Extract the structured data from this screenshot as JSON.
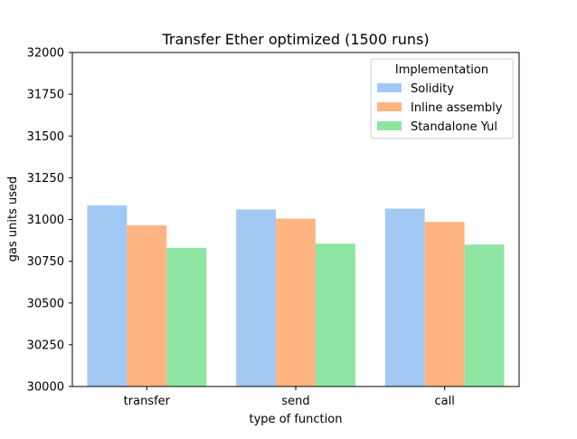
{
  "chart_data": {
    "type": "bar",
    "title": "Transfer Ether optimized (1500 runs)",
    "xlabel": "type of function",
    "ylabel": "gas units used",
    "categories": [
      "transfer",
      "send",
      "call"
    ],
    "ylim": [
      30000,
      32000
    ],
    "yticks": [
      30000,
      30250,
      30500,
      30750,
      31000,
      31250,
      31500,
      31750,
      32000
    ],
    "grid": false,
    "legend": {
      "title": "Implementation",
      "placement": "top-right"
    },
    "series": [
      {
        "name": "Solidity",
        "color": "#a1c9f4",
        "values": [
          31085,
          31060,
          31065
        ]
      },
      {
        "name": "Inline assembly",
        "color": "#ffb482",
        "values": [
          30965,
          31005,
          30985
        ]
      },
      {
        "name": "Standalone Yul",
        "color": "#8de5a1",
        "values": [
          30830,
          30855,
          30850
        ]
      }
    ]
  }
}
